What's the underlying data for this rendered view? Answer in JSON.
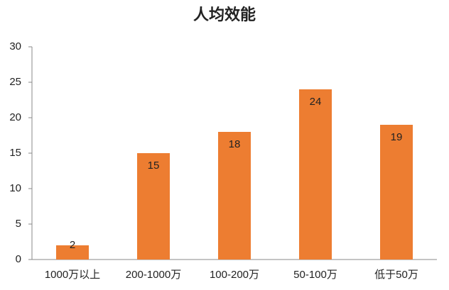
{
  "chart_data": {
    "type": "bar",
    "title": "人均效能",
    "categories": [
      "1000万以上",
      "200-1000万",
      "100-200万",
      "50-100万",
      "低于50万"
    ],
    "values": [
      2,
      15,
      18,
      24,
      19
    ],
    "color": "#ed7d31",
    "ylim": [
      0,
      30
    ],
    "yticks": [
      0,
      5,
      10,
      15,
      20,
      25,
      30
    ],
    "grid": false
  }
}
